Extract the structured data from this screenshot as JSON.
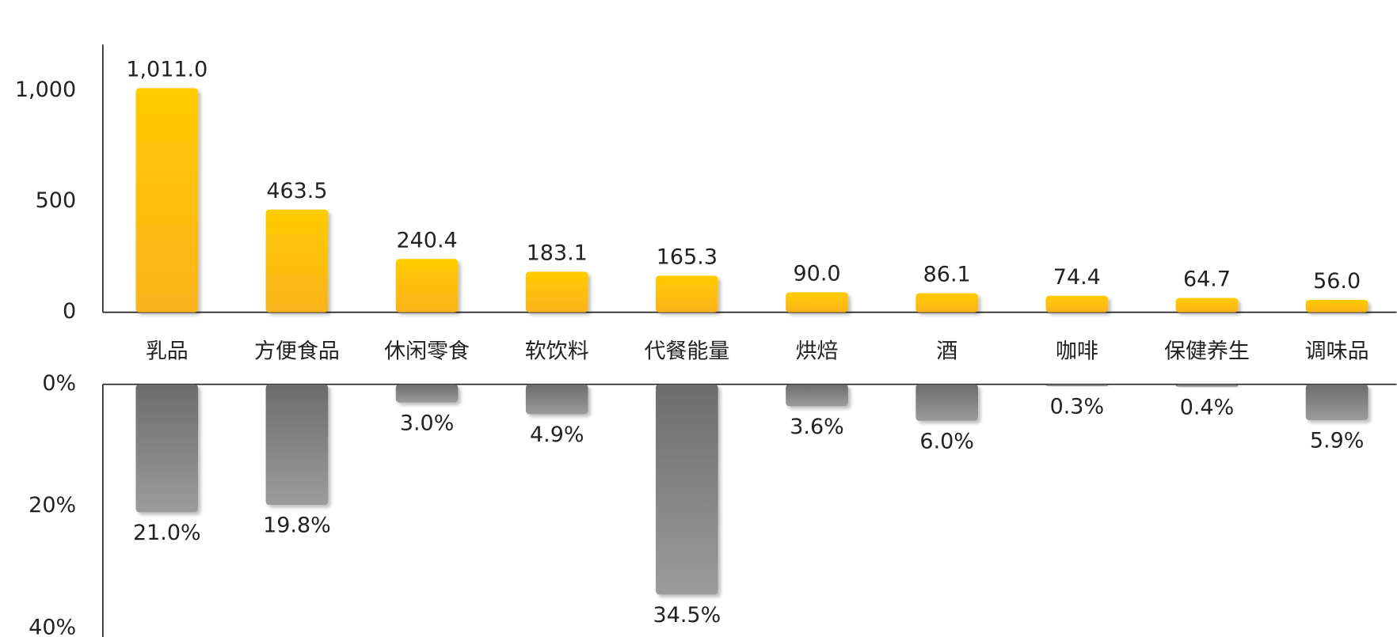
{
  "chart_data": [
    {
      "type": "bar",
      "categories": [
        "乳品",
        "方便食品",
        "休闲零食",
        "软饮料",
        "代餐能量",
        "烘焙",
        "酒",
        "咖啡",
        "保健养生",
        "调味品"
      ],
      "values": [
        1011.0,
        463.5,
        240.4,
        183.1,
        165.3,
        90.0,
        86.1,
        74.4,
        64.7,
        56.0
      ],
      "value_labels": [
        "1,011.0",
        "463.5",
        "240.4",
        "183.1",
        "165.3",
        "90.0",
        "86.1",
        "74.4",
        "64.7",
        "56.0"
      ],
      "color": "#ffcc00",
      "ylim": [
        0,
        1200
      ],
      "yticks": [
        0,
        500,
        {
          "value": 1000,
          "label": "1,000"
        }
      ]
    },
    {
      "type": "bar",
      "values": [
        21.0,
        19.8,
        3.0,
        4.9,
        34.5,
        3.6,
        6.0,
        0.3,
        0.4,
        5.9
      ],
      "value_labels": [
        "21.0%",
        "19.8%",
        "3.0%",
        "4.9%",
        "34.5%",
        "3.6%",
        "6.0%",
        "0.3%",
        "0.4%",
        "5.9%"
      ],
      "color": "#7a7a7a",
      "ylim": [
        0,
        40
      ],
      "inverted": true,
      "yticks": [
        {
          "value": 0,
          "label": "0%"
        },
        {
          "value": 20,
          "label": "20%"
        },
        {
          "value": 40,
          "label": "40%"
        }
      ]
    }
  ]
}
